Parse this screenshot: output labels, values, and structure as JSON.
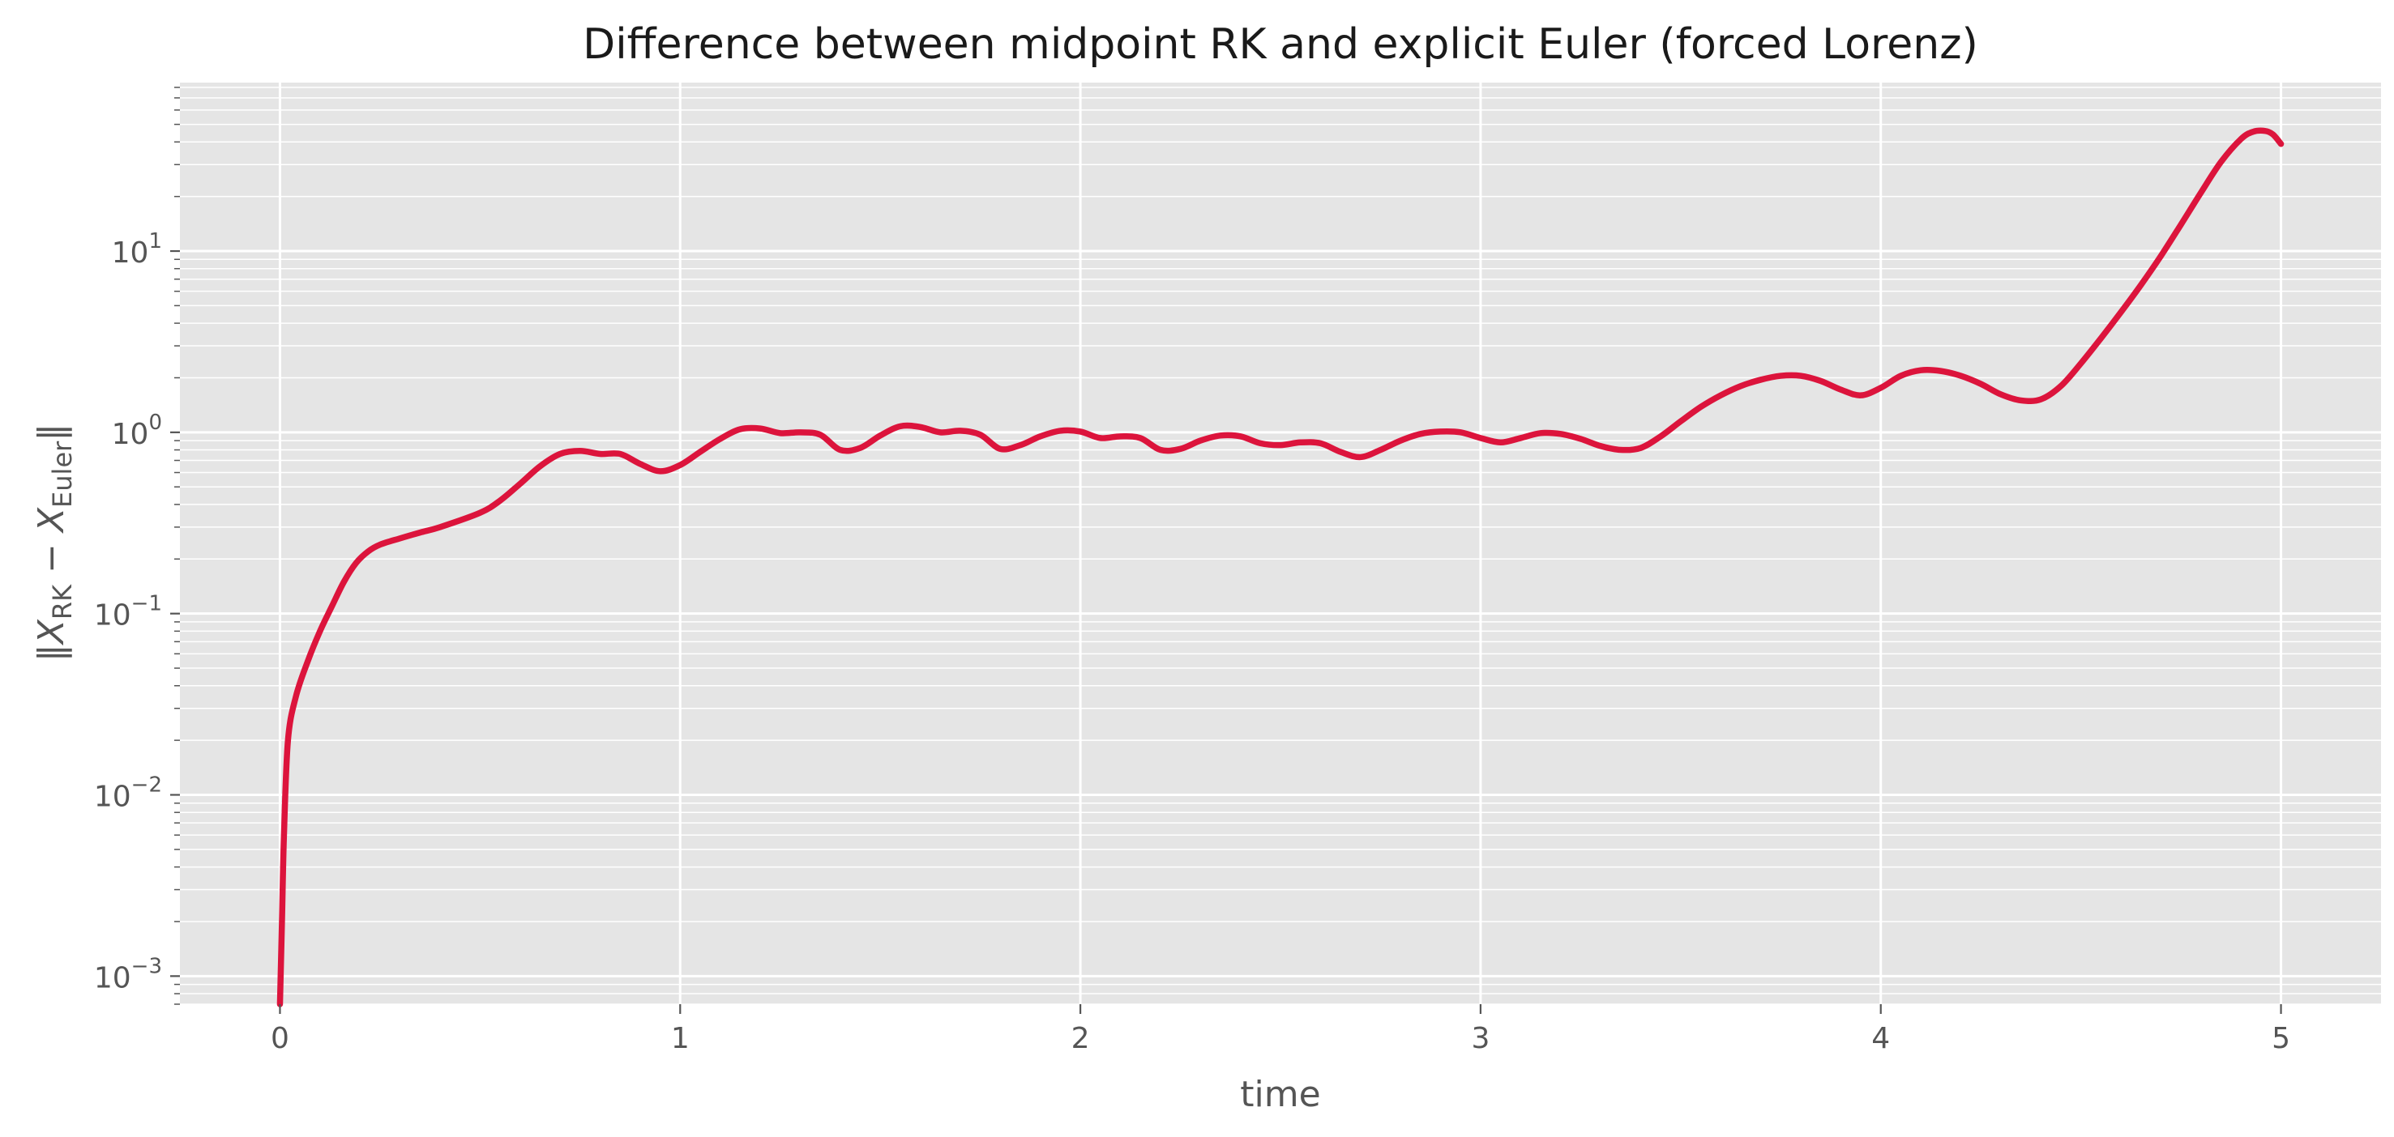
{
  "chart_data": {
    "type": "line",
    "title": "Difference between midpoint RK and explicit Euler (forced Lorenz)",
    "xlabel": "time",
    "ylabel": {
      "norm_left": "‖",
      "x1": "X",
      "sub1": "RK",
      "minus": " − ",
      "x2": "X",
      "sub2": "Euler",
      "norm_right": "‖"
    },
    "yscale": "log",
    "xlim": [
      -0.25,
      5.25
    ],
    "ylim": [
      0.0007,
      85
    ],
    "grid": true,
    "x_ticks": [
      {
        "value": 0,
        "label": "0"
      },
      {
        "value": 1,
        "label": "1"
      },
      {
        "value": 2,
        "label": "2"
      },
      {
        "value": 3,
        "label": "3"
      },
      {
        "value": 4,
        "label": "4"
      },
      {
        "value": 5,
        "label": "5"
      }
    ],
    "y_ticks": [
      {
        "value": 0.001,
        "base": "10",
        "exp": "−3"
      },
      {
        "value": 0.01,
        "base": "10",
        "exp": "−2"
      },
      {
        "value": 0.1,
        "base": "10",
        "exp": "−1"
      },
      {
        "value": 1,
        "base": "10",
        "exp": "0"
      },
      {
        "value": 10,
        "base": "10",
        "exp": "1"
      }
    ],
    "series": [
      {
        "color": "#dc143c",
        "x": [
          0.0,
          0.005,
          0.01,
          0.02,
          0.04,
          0.07,
          0.1,
          0.13,
          0.16,
          0.19,
          0.22,
          0.25,
          0.3,
          0.35,
          0.4,
          0.5,
          0.55,
          0.6,
          0.65,
          0.7,
          0.75,
          0.8,
          0.85,
          0.9,
          0.95,
          1.0,
          1.05,
          1.1,
          1.15,
          1.2,
          1.25,
          1.3,
          1.35,
          1.4,
          1.45,
          1.5,
          1.55,
          1.6,
          1.65,
          1.7,
          1.75,
          1.8,
          1.85,
          1.9,
          1.95,
          2.0,
          2.05,
          2.1,
          2.15,
          2.2,
          2.25,
          2.3,
          2.35,
          2.4,
          2.45,
          2.5,
          2.55,
          2.6,
          2.65,
          2.7,
          2.75,
          2.8,
          2.85,
          2.9,
          2.95,
          3.0,
          3.05,
          3.1,
          3.15,
          3.2,
          3.25,
          3.3,
          3.35,
          3.4,
          3.45,
          3.5,
          3.55,
          3.6,
          3.65,
          3.7,
          3.75,
          3.8,
          3.85,
          3.9,
          3.95,
          4.0,
          4.05,
          4.1,
          4.15,
          4.2,
          4.25,
          4.3,
          4.35,
          4.4,
          4.45,
          4.5,
          4.55,
          4.6,
          4.65,
          4.7,
          4.75,
          4.8,
          4.85,
          4.9,
          4.93,
          4.96,
          4.98,
          5.0
        ],
        "y": [
          0.0007,
          0.002,
          0.006,
          0.02,
          0.035,
          0.055,
          0.08,
          0.11,
          0.15,
          0.19,
          0.22,
          0.24,
          0.26,
          0.28,
          0.3,
          0.36,
          0.42,
          0.52,
          0.65,
          0.76,
          0.79,
          0.76,
          0.76,
          0.67,
          0.61,
          0.66,
          0.78,
          0.92,
          1.04,
          1.05,
          0.99,
          1.0,
          0.97,
          0.8,
          0.82,
          0.96,
          1.08,
          1.07,
          1.0,
          1.02,
          0.97,
          0.81,
          0.85,
          0.95,
          1.02,
          1.01,
          0.93,
          0.95,
          0.93,
          0.8,
          0.81,
          0.9,
          0.96,
          0.95,
          0.87,
          0.85,
          0.88,
          0.87,
          0.78,
          0.73,
          0.8,
          0.9,
          0.98,
          1.01,
          1.0,
          0.93,
          0.88,
          0.93,
          0.99,
          0.98,
          0.92,
          0.84,
          0.8,
          0.82,
          0.95,
          1.15,
          1.38,
          1.6,
          1.8,
          1.95,
          2.05,
          2.05,
          1.92,
          1.72,
          1.6,
          1.76,
          2.05,
          2.2,
          2.18,
          2.05,
          1.85,
          1.62,
          1.5,
          1.52,
          1.8,
          2.4,
          3.3,
          4.6,
          6.5,
          9.4,
          14.0,
          21.0,
          31.0,
          41.5,
          45.5,
          46.0,
          44.0,
          39.0
        ]
      }
    ]
  }
}
